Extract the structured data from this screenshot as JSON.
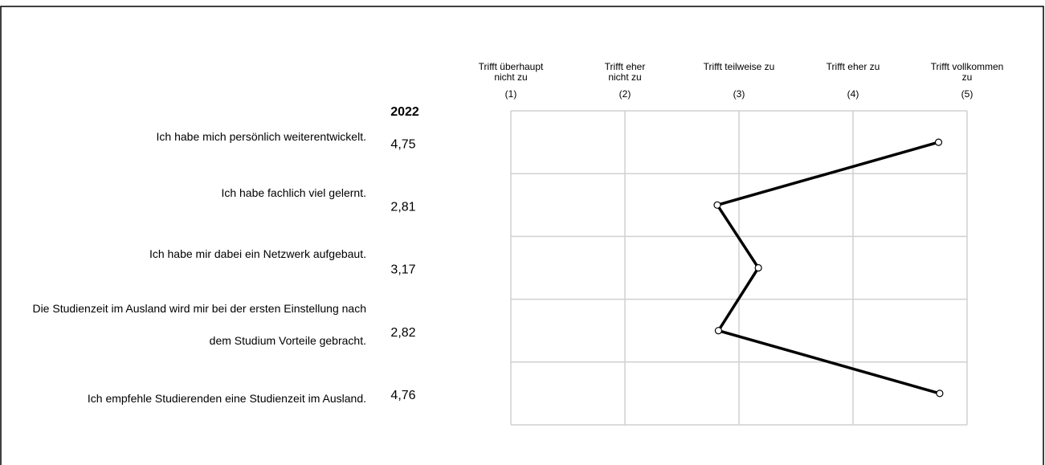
{
  "chart_data": {
    "type": "line",
    "year": "2022",
    "categories": [
      "Ich habe mich persönlich weiterentwickelt.",
      "Ich habe fachlich viel gelernt.",
      "Ich habe mir dabei ein Netzwerk aufgebaut.",
      "Die Studienzeit im Ausland wird mir bei der ersten Einstellung nach dem Studium Vorteile gebracht.",
      "Ich empfehle Studierenden eine Studienzeit im Ausland."
    ],
    "series": [
      {
        "color": "#000000",
        "values": [
          4.75,
          2.81,
          3.17,
          2.82,
          4.76
        ],
        "value_labels": [
          "4,75",
          "2,81",
          "3,17",
          "2,82",
          "4,76"
        ]
      }
    ],
    "scale_labels": [
      [
        "Trifft überhaupt",
        "nicht zu"
      ],
      [
        "Trifft eher",
        "nicht zu"
      ],
      [
        "Trifft teilweise zu"
      ],
      [
        "Trifft eher zu"
      ],
      [
        "Trifft vollkommen",
        "zu"
      ]
    ],
    "xlim": [
      1,
      5
    ],
    "xticks": [
      {
        "value": 1,
        "label": "(1)"
      },
      {
        "value": 2,
        "label": "(2)"
      },
      {
        "value": 3,
        "label": "(3)"
      },
      {
        "value": 4,
        "label": "(4)"
      },
      {
        "value": 5,
        "label": "(5)"
      }
    ],
    "grid": true
  }
}
